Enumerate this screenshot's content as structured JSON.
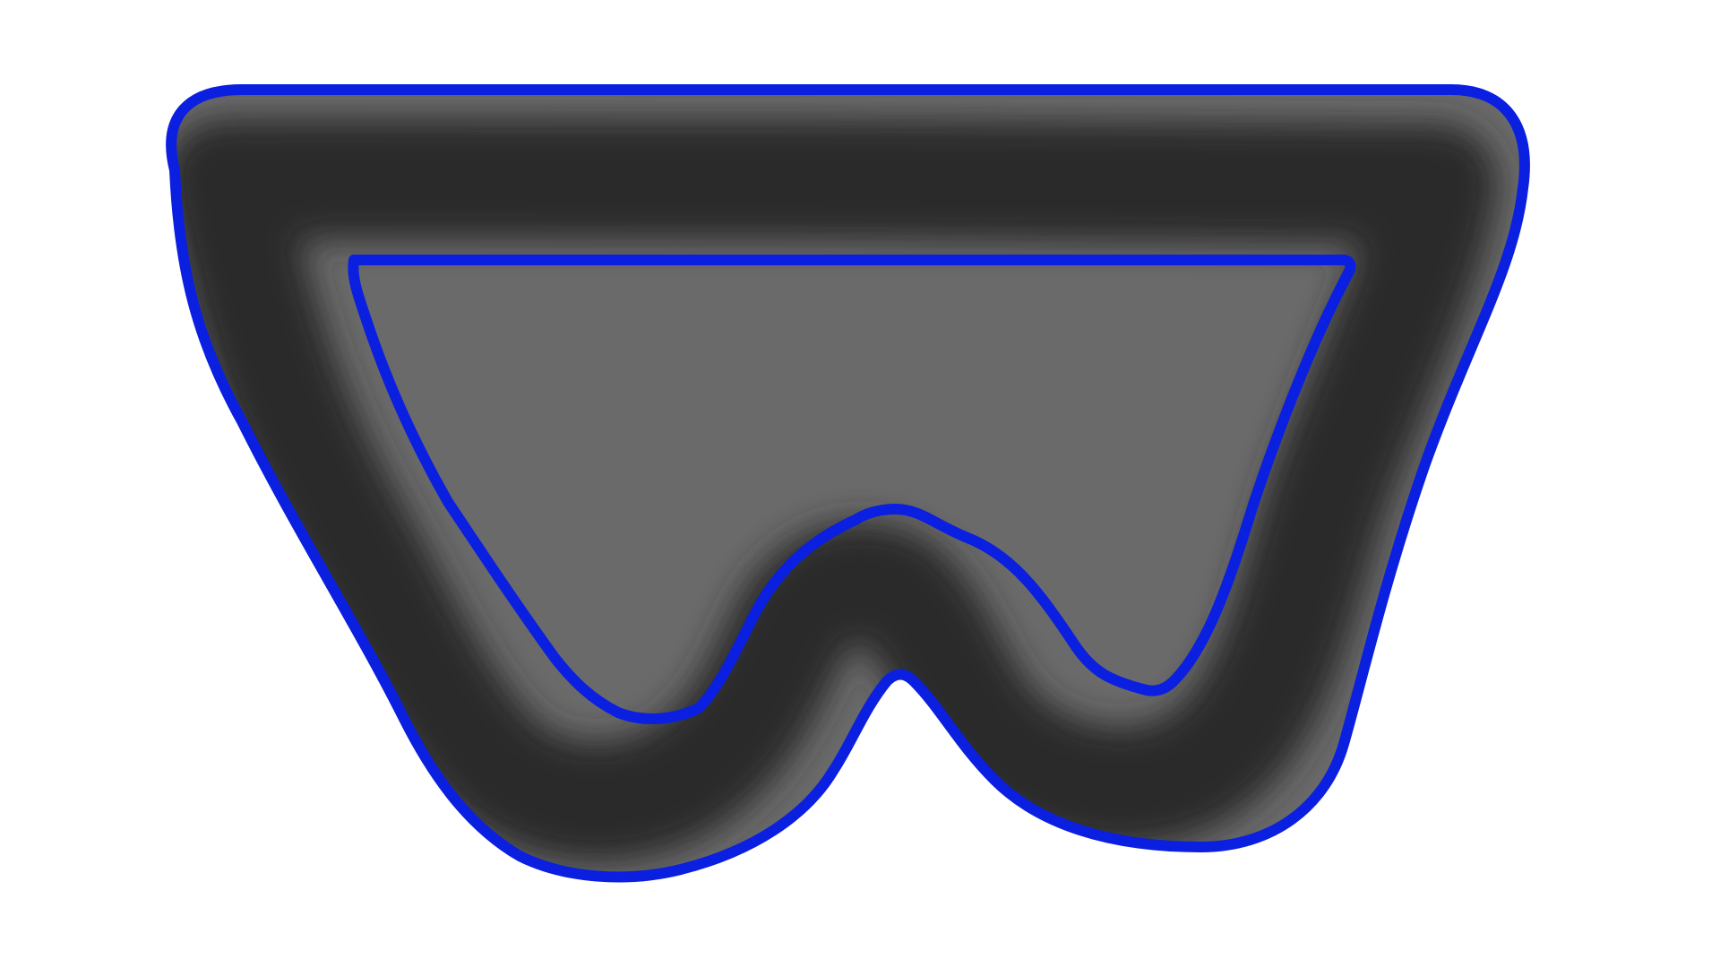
{
  "scene": {
    "shape_icon": "goggles-outline-icon",
    "colors": {
      "background": "#ffffff",
      "stroke_dark": "#2a2a2a",
      "stroke_light": "#6a6a6a",
      "outline": "#0a1fe0"
    }
  }
}
